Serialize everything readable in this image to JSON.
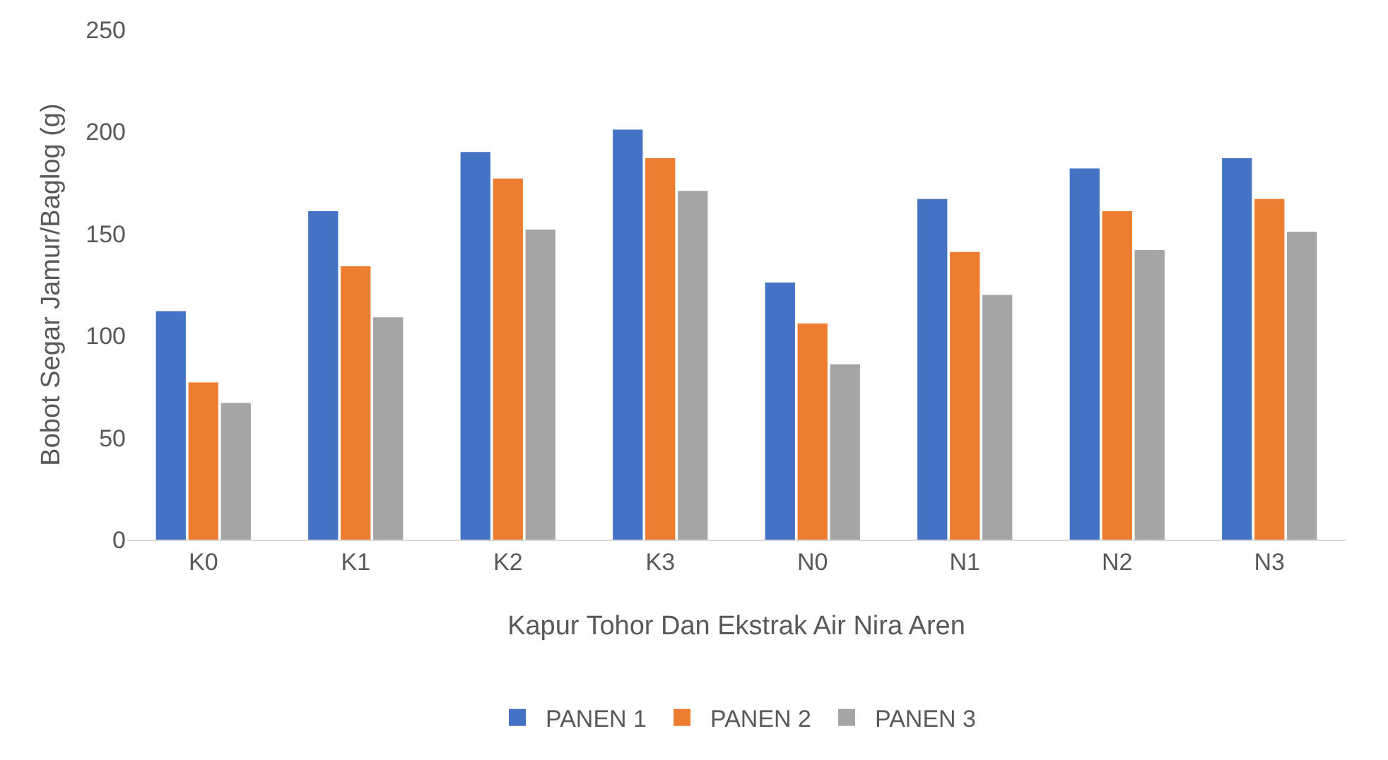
{
  "chart_data": {
    "type": "bar",
    "xlabel": "Kapur Tohor Dan Ekstrak Air Nira Aren",
    "ylabel": "Bobot Segar Jamur/Baglog (g)",
    "categories": [
      "K0",
      "K1",
      "K2",
      "K3",
      "N0",
      "N1",
      "N2",
      "N3"
    ],
    "series": [
      {
        "name": "PANEN 1",
        "color": "#4472c4",
        "values": [
          112,
          161,
          190,
          201,
          126,
          167,
          182,
          187
        ]
      },
      {
        "name": "PANEN 2",
        "color": "#ed7d31",
        "values": [
          77,
          134,
          177,
          187,
          106,
          141,
          161,
          167
        ]
      },
      {
        "name": "PANEN 3",
        "color": "#a5a5a5",
        "values": [
          67,
          109,
          152,
          171,
          86,
          120,
          142,
          151
        ]
      }
    ],
    "ylim": [
      0,
      250
    ],
    "yticks": [
      0,
      50,
      100,
      150,
      200,
      250
    ],
    "grid": false,
    "legend": "bottom"
  }
}
